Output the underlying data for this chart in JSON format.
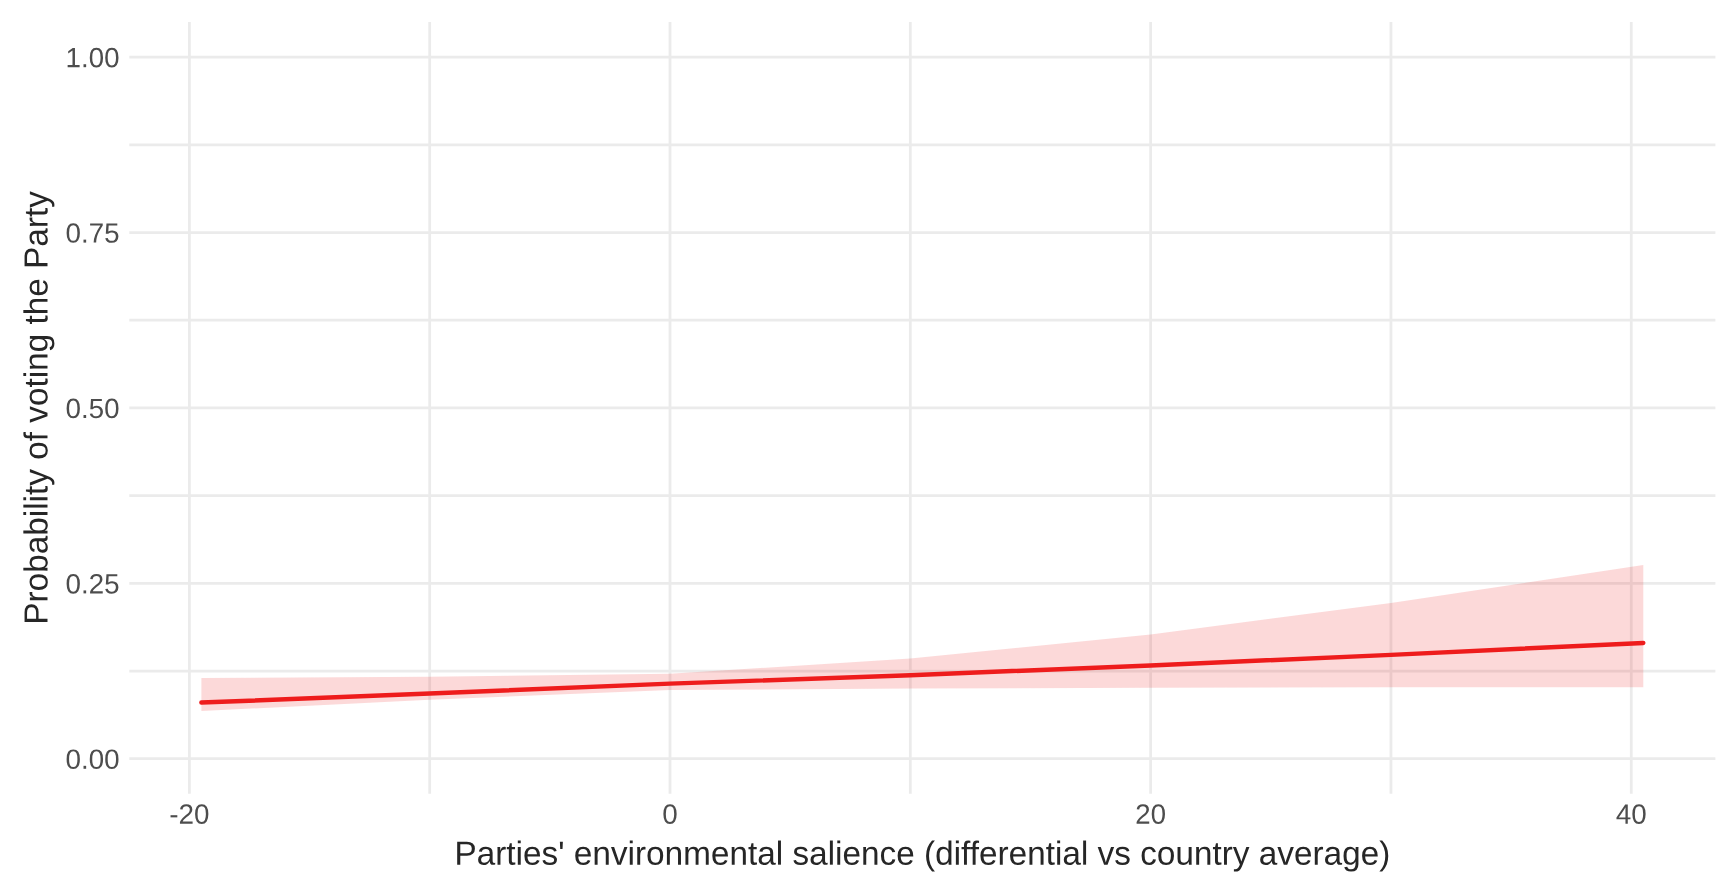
{
  "chart_data": {
    "type": "line",
    "xlabel": "Parties' environmental salience (differential vs country average)",
    "ylabel": "Probability of voting the Party",
    "series": [
      {
        "color": "#ee1c1c",
        "x": [
          -19.5,
          -10,
          0,
          10,
          20,
          30,
          40.5
        ],
        "values": [
          0.08,
          0.093,
          0.107,
          0.119,
          0.133,
          0.148,
          0.165
        ],
        "lower": [
          0.068,
          0.084,
          0.098,
          0.1,
          0.101,
          0.102,
          0.102
        ],
        "upper": [
          0.115,
          0.117,
          0.121,
          0.143,
          0.177,
          0.222,
          0.276
        ]
      }
    ],
    "xlim": [
      -22.5,
      43.5
    ],
    "ylim": [
      -0.05,
      1.05
    ],
    "xticks": [
      -20,
      {
        "value": -10,
        "label": null
      },
      0,
      {
        "value": 10,
        "label": null
      },
      20,
      {
        "value": 30,
        "label": null
      },
      40
    ],
    "yticks": [
      {
        "value": 0,
        "label": "0.00"
      },
      {
        "value": 0.125,
        "label": null
      },
      {
        "value": 0.25,
        "label": "0.25"
      },
      {
        "value": 0.375,
        "label": null
      },
      {
        "value": 0.5,
        "label": "0.50"
      },
      {
        "value": 0.625,
        "label": null
      },
      {
        "value": 0.75,
        "label": "0.75"
      },
      {
        "value": 0.875,
        "label": null
      },
      {
        "value": 1,
        "label": "1.00"
      }
    ],
    "grid": true,
    "line_style": "solid"
  }
}
